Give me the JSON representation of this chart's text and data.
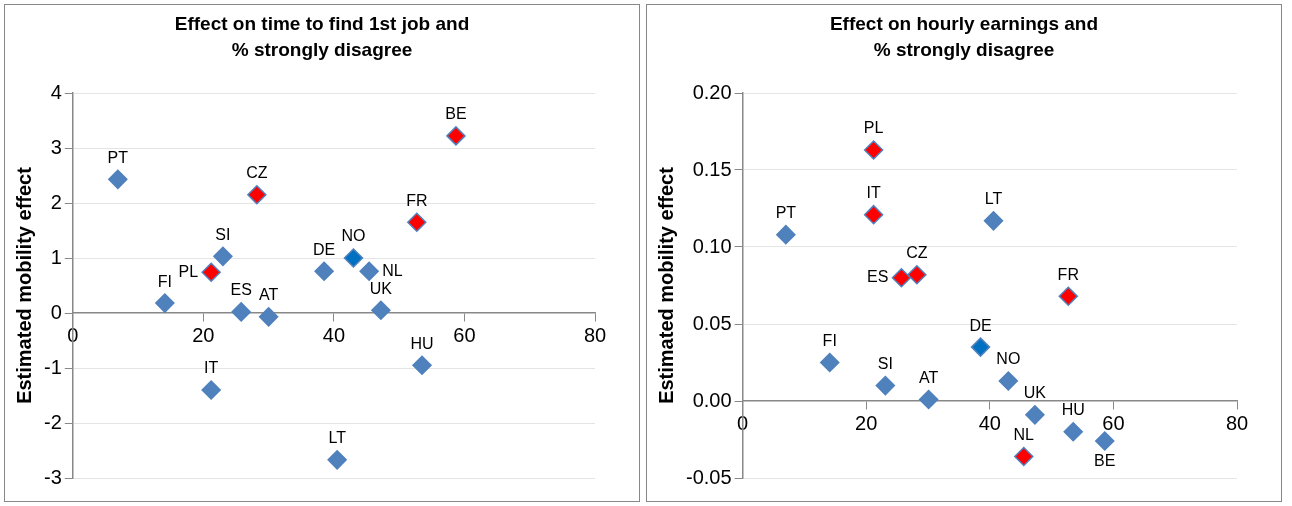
{
  "chart_data": [
    {
      "type": "scatter",
      "title": "Effect on time to find 1st job and % strongly disagree",
      "ylabel": "Estimated mobility effect",
      "marker": "diamond",
      "grid": "y",
      "xlim": [
        0,
        80
      ],
      "xticks": [
        0,
        20,
        40,
        60,
        80
      ],
      "ylim": [
        -3,
        4
      ],
      "yticks": [
        -3,
        -2,
        -1,
        0,
        1,
        2,
        3,
        4
      ],
      "series": [
        {
          "color": "#4f81bd",
          "x": [
            6.9,
            14.1,
            23.0,
            25.8,
            30.0,
            38.5,
            45.4,
            47.2,
            53.5,
            21.2,
            40.5
          ],
          "values": [
            2.43,
            0.18,
            1.03,
            0.02,
            -0.07,
            0.76,
            0.76,
            0.05,
            -0.95,
            -1.4,
            -2.67
          ]
        },
        {
          "color": "#ff0000",
          "x": [
            21.2,
            28.2,
            52.7,
            58.7
          ],
          "values": [
            0.74,
            2.15,
            1.65,
            3.22
          ]
        },
        {
          "color": "#0070c0",
          "x": [
            43.0
          ],
          "values": [
            1.0
          ]
        }
      ],
      "annotations": [
        {
          "text": "PT",
          "x": 6.9,
          "y": 2.43
        },
        {
          "text": "FI",
          "x": 14.1,
          "y": 0.18
        },
        {
          "text": "SI",
          "x": 23.0,
          "y": 1.03
        },
        {
          "text": "ES",
          "x": 25.8,
          "y": 0.02
        },
        {
          "text": "AT",
          "x": 30.0,
          "y": -0.07
        },
        {
          "text": "DE",
          "x": 38.5,
          "y": 0.76
        },
        {
          "text": "NL",
          "x": 45.4,
          "y": 0.76
        },
        {
          "text": "UK",
          "x": 47.2,
          "y": 0.05
        },
        {
          "text": "HU",
          "x": 53.5,
          "y": -0.95
        },
        {
          "text": "IT",
          "x": 21.2,
          "y": -1.4
        },
        {
          "text": "LT",
          "x": 40.5,
          "y": -2.67
        },
        {
          "text": "PL",
          "x": 21.2,
          "y": 0.74
        },
        {
          "text": "CZ",
          "x": 28.2,
          "y": 2.15
        },
        {
          "text": "FR",
          "x": 52.7,
          "y": 1.65
        },
        {
          "text": "BE",
          "x": 58.7,
          "y": 3.22
        },
        {
          "text": "NO",
          "x": 43.0,
          "y": 1.0
        }
      ]
    },
    {
      "type": "scatter",
      "title": "Effect on hourly earnings and % strongly disagree",
      "ylabel": "Estimated mobility effect",
      "marker": "diamond",
      "grid": "y",
      "xlim": [
        0,
        80
      ],
      "xticks": [
        0,
        20,
        40,
        60,
        80
      ],
      "ylim": [
        -0.05,
        0.2
      ],
      "yticks": [
        {
          "value": -0.05,
          "label": "-0.05"
        },
        {
          "value": 0,
          "label": "0.00"
        },
        {
          "value": 0.05,
          "label": "0.05"
        },
        {
          "value": 0.1,
          "label": "0.10"
        },
        {
          "value": 0.15,
          "label": "0.15"
        },
        {
          "value": 0.2,
          "label": "0.20"
        }
      ],
      "series": [
        {
          "color": "#4f81bd",
          "x": [
            7.0,
            40.6,
            14.1,
            23.1,
            30.1,
            43.0,
            47.3,
            53.5,
            58.6
          ],
          "values": [
            0.108,
            0.117,
            0.025,
            0.01,
            0.001,
            0.013,
            -0.009,
            -0.02,
            -0.026
          ]
        },
        {
          "color": "#ff0000",
          "x": [
            21.2,
            21.2,
            28.2,
            25.7,
            52.7,
            45.5
          ],
          "values": [
            0.163,
            0.121,
            0.082,
            0.08,
            0.068,
            -0.036
          ]
        },
        {
          "color": "#0070c0",
          "x": [
            38.5
          ],
          "values": [
            0.035
          ]
        }
      ],
      "annotations": [
        {
          "text": "PT",
          "x": 7.0,
          "y": 0.108
        },
        {
          "text": "LT",
          "x": 40.6,
          "y": 0.117
        },
        {
          "text": "FI",
          "x": 14.1,
          "y": 0.025
        },
        {
          "text": "SI",
          "x": 23.1,
          "y": 0.01
        },
        {
          "text": "AT",
          "x": 30.1,
          "y": 0.001
        },
        {
          "text": "NO",
          "x": 43.0,
          "y": 0.013
        },
        {
          "text": "UK",
          "x": 47.3,
          "y": -0.009
        },
        {
          "text": "HU",
          "x": 53.5,
          "y": -0.02
        },
        {
          "text": "BE",
          "x": 58.6,
          "y": -0.026
        },
        {
          "text": "PL",
          "x": 21.2,
          "y": 0.163
        },
        {
          "text": "IT",
          "x": 21.2,
          "y": 0.121
        },
        {
          "text": "CZ",
          "x": 28.2,
          "y": 0.082
        },
        {
          "text": "ES",
          "x": 25.7,
          "y": 0.08
        },
        {
          "text": "FR",
          "x": 52.7,
          "y": 0.068
        },
        {
          "text": "NL",
          "x": 45.5,
          "y": -0.036
        },
        {
          "text": "DE",
          "x": 38.5,
          "y": 0.035
        }
      ]
    }
  ]
}
